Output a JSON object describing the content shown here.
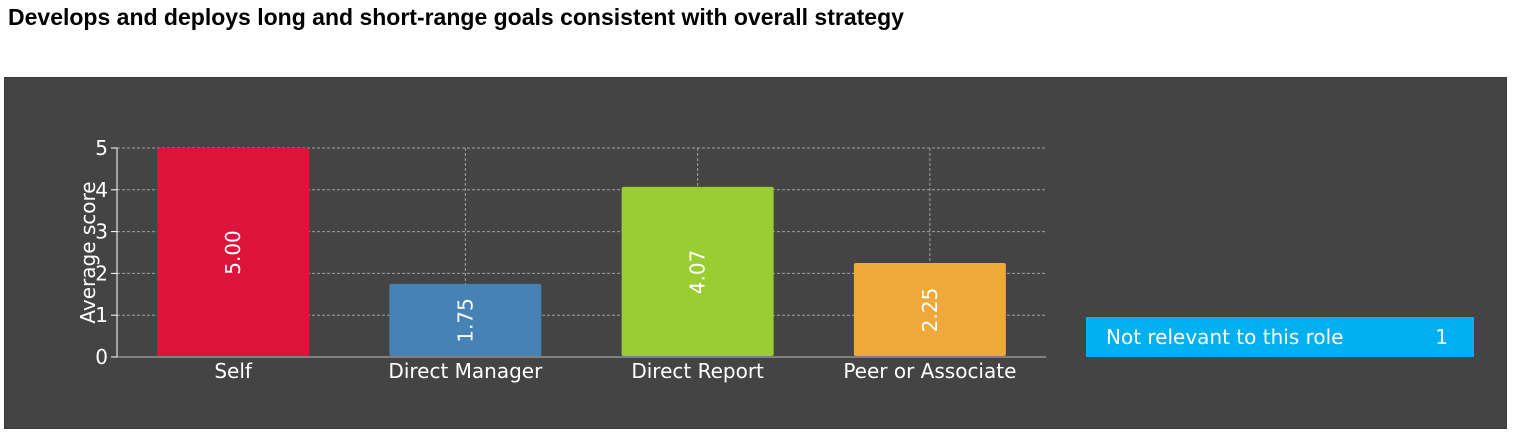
{
  "title": "Develops and deploys long and short-range goals consistent with overall strategy",
  "chart_data": {
    "type": "bar",
    "title": "Develops and deploys long and short-range goals consistent with overall strategy",
    "xlabel": "",
    "ylabel": "Average score",
    "ylim": [
      0,
      5
    ],
    "yticks": [
      0,
      1,
      2,
      3,
      4,
      5
    ],
    "grid": true,
    "categories": [
      "Self",
      "Direct Manager",
      "Direct Report",
      "Peer or Associate"
    ],
    "values": [
      5.0,
      1.75,
      4.07,
      2.25
    ],
    "value_labels": [
      "5.00",
      "1.75",
      "4.07",
      "2.25"
    ],
    "colors": [
      "#dc143c",
      "#4682b4",
      "#9acd32",
      "#eea93a"
    ]
  },
  "not_relevant": {
    "label": "Not relevant to this role",
    "count": "1",
    "color": "#00b0f0"
  },
  "colors": {
    "panel_background": "#444444",
    "grid": "#a0a0a0",
    "text": "#ffffff"
  }
}
